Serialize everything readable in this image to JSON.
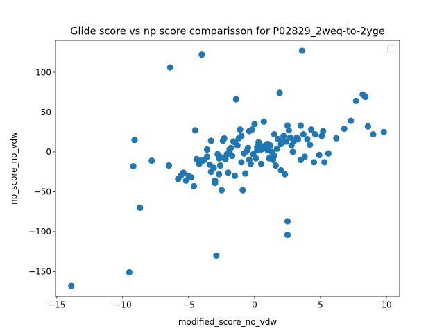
{
  "colors": {
    "marker": "#1f77b4",
    "axes": "#000000",
    "background": "#ffffff"
  },
  "chart_data": {
    "type": "scatter",
    "title": "Glide score vs np score comparisson for P02829_2weq-to-2yge",
    "xlabel": "modified_score_no_vdw",
    "ylabel": "np_score_no_vdw",
    "xlim": [
      -15.1,
      11.0
    ],
    "ylim": [
      -181,
      140
    ],
    "xticks": [
      -15,
      -10,
      -5,
      0,
      5,
      10
    ],
    "yticks": [
      -150,
      -100,
      -50,
      0,
      50,
      100
    ],
    "grid": false,
    "legend": {
      "location": "upper right",
      "entries": []
    },
    "series": [
      {
        "x": [
          -13.9,
          -9.5,
          -8.7,
          -9.1,
          -9.2,
          -7.8,
          -6.4,
          -6.5,
          -4.0,
          3.6,
          -1.4,
          1.9,
          8.2,
          8.4,
          7.7,
          8.6,
          9.8,
          9.0,
          7.3,
          6.8,
          6.2,
          5.6,
          5.3,
          5.2,
          5.1,
          4.9,
          4.6,
          4.3,
          4.0,
          3.7,
          3.5,
          3.2,
          3.0,
          2.8,
          2.6,
          2.5,
          2.4,
          2.2,
          2.0,
          1.8,
          1.6,
          1.5,
          1.2,
          1.0,
          0.9,
          0.8,
          0.6,
          0.5,
          0.3,
          0.2,
          0.0,
          -0.2,
          -0.4,
          -0.5,
          -0.7,
          -0.9,
          -1.0,
          -1.2,
          -1.3,
          -1.5,
          -1.6,
          -1.8,
          -1.9,
          -2.1,
          -2.2,
          -2.4,
          -2.5,
          -2.7,
          -2.8,
          -3.0,
          -3.1,
          -3.3,
          -3.4,
          -3.6,
          -3.8,
          -4.0,
          -4.2,
          -4.4,
          -4.6,
          -4.8,
          -5.0,
          -5.2,
          -5.4,
          -5.6,
          -5.8,
          -4.5,
          -2.9,
          -2.5,
          2.5,
          2.5,
          -0.4,
          0.5,
          1.0,
          1.5,
          3.5,
          4.5,
          2.0,
          2.3,
          0.1,
          -0.3,
          -1.0,
          -2.0,
          -3.0,
          -2.7,
          -3.3,
          -1.7,
          0.9,
          1.4,
          2.7,
          3.3,
          -0.6,
          -0.1,
          0.4,
          1.1,
          1.7,
          2.1,
          2.9,
          3.8,
          4.2,
          -2.3,
          -1.1,
          0.7,
          -1.5,
          -0.8,
          0.2,
          -2.6,
          -3.6,
          -4.1,
          -1.9,
          1.3
        ],
        "y": [
          -168,
          -151,
          -70,
          15,
          -18,
          -11,
          106,
          -17,
          122,
          127,
          66,
          74,
          72,
          69,
          64,
          32,
          25,
          22,
          39,
          29,
          17,
          -2,
          -13,
          26,
          20,
          -4,
          22,
          28,
          16,
          22,
          33,
          18,
          14,
          8,
          27,
          33,
          13,
          20,
          10,
          16,
          -17,
          22,
          8,
          10,
          9,
          5,
          7,
          3,
          12,
          2,
          35,
          28,
          26,
          5,
          -27,
          -48,
          20,
          17,
          8,
          12,
          13,
          5,
          3,
          -3,
          -9,
          14,
          -7,
          -8,
          -3,
          -36,
          -20,
          -25,
          -16,
          3,
          -10,
          -12,
          -15,
          -9,
          -43,
          -32,
          -30,
          -36,
          -26,
          -30,
          -34,
          27,
          -130,
          -48,
          -87,
          -104,
          -10,
          -15,
          2,
          -5,
          -10,
          -13,
          -23,
          -28,
          -8,
          -15,
          -13,
          -26,
          -39,
          -28,
          14,
          -5,
          5,
          -10,
          18,
          16,
          1,
          -3,
          7,
          -8,
          4,
          12,
          0,
          -6,
          9,
          17,
          28,
          38,
          -30,
          -2,
          6,
          -17,
          -6,
          -11,
          -1,
          0
        ]
      }
    ]
  }
}
